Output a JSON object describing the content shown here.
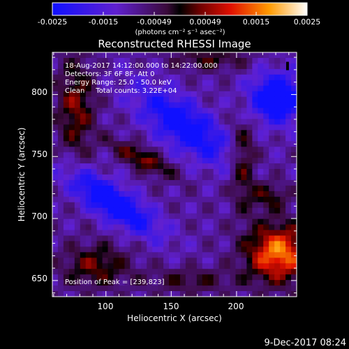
{
  "chart_data": {
    "type": "heatmap",
    "title": "Reconstructed RHESSI Image",
    "xlabel": "Heliocentric X (arcsec)",
    "ylabel": "Heliocentric Y (arcsec)",
    "xlim": [
      59,
      246
    ],
    "ylim": [
      637,
      834
    ],
    "x_ticks": [
      100,
      150,
      200
    ],
    "y_ticks": [
      650,
      700,
      750,
      800
    ],
    "colorbar": {
      "ticks": [
        "-0.0025",
        "-0.0015",
        "-0.00049",
        "0.00049",
        "0.0015",
        "0.0025"
      ],
      "range": [
        -0.0025,
        0.0025
      ],
      "unit_label": "(photons cm⁻² s⁻¹ asec⁻²)"
    },
    "info": {
      "time_range": "18-Aug-2017 14:12:00.000 to 14:22:00.000",
      "detectors": "Detectors: 3F 6F 8F, Att 0",
      "energy": "Energy Range: 25.0 - 50.0 keV",
      "clean": "Clean     Total counts: 3.22E+04"
    },
    "peak_label": "Position of Peak = [239,823]",
    "peak_position": [
      239,
      823
    ],
    "blobs": [
      {
        "x": 105,
        "y": 713,
        "sx": 28,
        "sy": 9,
        "angle_deg": -35,
        "amp": -0.0023
      },
      {
        "x": 160,
        "y": 775,
        "sx": 30,
        "sy": 12,
        "angle_deg": -38,
        "amp": -0.002
      },
      {
        "x": 231,
        "y": 797,
        "sx": 15,
        "sy": 14,
        "angle_deg": 0,
        "amp": -0.0023
      },
      {
        "x": 128,
        "y": 748,
        "sx": 18,
        "sy": 5,
        "angle_deg": -30,
        "amp": 0.0015
      },
      {
        "x": 232,
        "y": 672,
        "sx": 17,
        "sy": 16,
        "angle_deg": 0,
        "amp": 0.0025
      },
      {
        "x": 77,
        "y": 790,
        "sx": 10,
        "sy": 28,
        "angle_deg": 0,
        "amp": 0.0013
      },
      {
        "x": 92,
        "y": 662,
        "sx": 18,
        "sy": 12,
        "angle_deg": 0,
        "amp": 0.0012
      },
      {
        "x": 205,
        "y": 745,
        "sx": 7,
        "sy": 25,
        "angle_deg": 0,
        "amp": 0.0012
      },
      {
        "x": 165,
        "y": 650,
        "sx": 25,
        "sy": 7,
        "angle_deg": 0,
        "amp": 0.0008
      },
      {
        "x": 180,
        "y": 828,
        "sx": 20,
        "sy": 6,
        "angle_deg": 0,
        "amp": 0.0009
      },
      {
        "x": 225,
        "y": 718,
        "sx": 10,
        "sy": 8,
        "angle_deg": 0,
        "amp": 0.001
      }
    ]
  },
  "footer_timestamp": "9-Dec-2017 08:24"
}
